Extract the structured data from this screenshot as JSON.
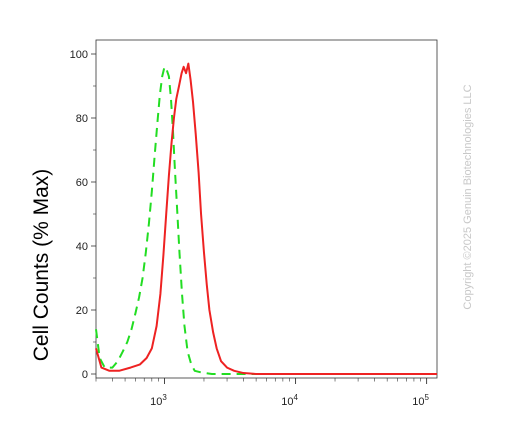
{
  "watermark": "Copyright ©2025 Genuin Biotechnologies LLC",
  "chart_data": {
    "type": "line",
    "title": "",
    "xlabel": "",
    "ylabel": "Cell Counts (% Max)",
    "x_scale": "log",
    "xlim": [
      300,
      120000
    ],
    "ylim": [
      0,
      104
    ],
    "grid": false,
    "legend": "none",
    "y_ticks": [
      {
        "value": 0,
        "label": "0"
      },
      {
        "value": 20,
        "label": "20"
      },
      {
        "value": 40,
        "label": "40"
      },
      {
        "value": 60,
        "label": "60"
      },
      {
        "value": 80,
        "label": "80"
      },
      {
        "value": 100,
        "label": "100"
      }
    ],
    "x_ticks": [
      {
        "value": 1000,
        "base": "10",
        "exp": "3"
      },
      {
        "value": 10000,
        "base": "10",
        "exp": "4"
      },
      {
        "value": 100000,
        "base": "10",
        "exp": "5"
      }
    ],
    "series": [
      {
        "color": "#22dd22",
        "style": "dashed",
        "points": [
          [
            300,
            14
          ],
          [
            320,
            5
          ],
          [
            350,
            2
          ],
          [
            400,
            2
          ],
          [
            440,
            4
          ],
          [
            480,
            7
          ],
          [
            520,
            10
          ],
          [
            560,
            14
          ],
          [
            600,
            19
          ],
          [
            640,
            24
          ],
          [
            680,
            30
          ],
          [
            720,
            38
          ],
          [
            760,
            47
          ],
          [
            800,
            57
          ],
          [
            840,
            68
          ],
          [
            880,
            78
          ],
          [
            920,
            87
          ],
          [
            960,
            93
          ],
          [
            1000,
            96
          ],
          [
            1040,
            95
          ],
          [
            1080,
            93
          ],
          [
            1120,
            86
          ],
          [
            1160,
            76
          ],
          [
            1200,
            64
          ],
          [
            1250,
            51
          ],
          [
            1300,
            38
          ],
          [
            1360,
            25
          ],
          [
            1420,
            15
          ],
          [
            1500,
            7
          ],
          [
            1600,
            3
          ],
          [
            1700,
            1
          ],
          [
            1900,
            0.5
          ],
          [
            2300,
            0
          ],
          [
            120000,
            0
          ]
        ]
      },
      {
        "color": "#ee2222",
        "style": "solid",
        "points": [
          [
            300,
            8
          ],
          [
            330,
            2
          ],
          [
            380,
            1
          ],
          [
            450,
            1
          ],
          [
            550,
            2
          ],
          [
            650,
            3
          ],
          [
            730,
            5
          ],
          [
            800,
            8
          ],
          [
            870,
            15
          ],
          [
            930,
            25
          ],
          [
            980,
            37
          ],
          [
            1030,
            50
          ],
          [
            1080,
            62
          ],
          [
            1130,
            72
          ],
          [
            1180,
            80
          ],
          [
            1230,
            86
          ],
          [
            1290,
            90
          ],
          [
            1350,
            94
          ],
          [
            1400,
            96
          ],
          [
            1460,
            94
          ],
          [
            1520,
            97
          ],
          [
            1580,
            92
          ],
          [
            1650,
            85
          ],
          [
            1730,
            75
          ],
          [
            1820,
            63
          ],
          [
            1900,
            50
          ],
          [
            2000,
            38
          ],
          [
            2100,
            28
          ],
          [
            2200,
            20
          ],
          [
            2350,
            13
          ],
          [
            2500,
            8
          ],
          [
            2700,
            4
          ],
          [
            3000,
            2
          ],
          [
            3400,
            1
          ],
          [
            4000,
            0.3
          ],
          [
            5000,
            0
          ],
          [
            120000,
            0
          ]
        ]
      }
    ]
  }
}
